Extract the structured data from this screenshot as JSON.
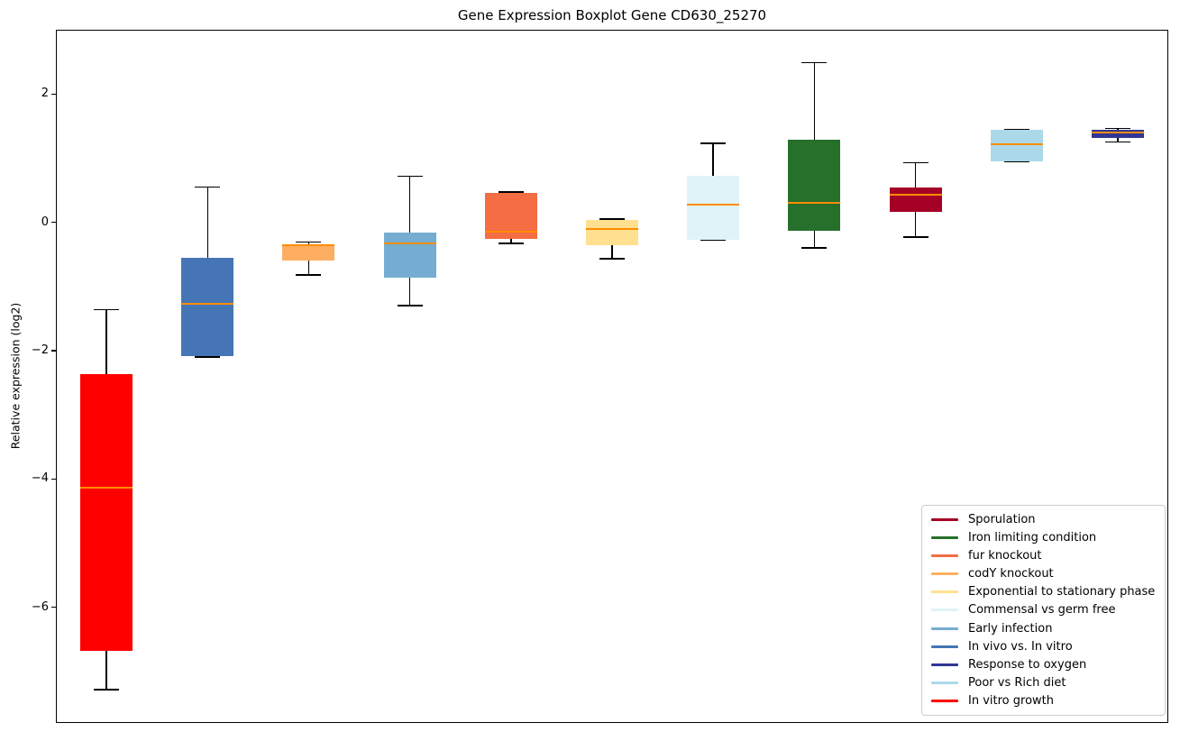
{
  "figure": {
    "title": "Gene Expression Boxplot Gene CD630_25270",
    "y_axis_label": "Relative expression (log2)"
  },
  "chart_data": {
    "type": "boxplot",
    "title": "Gene Expression Boxplot Gene CD630_25270",
    "xlabel": "",
    "ylabel": "Relative expression (log2)",
    "ylim": [
      -7.8,
      3.0
    ],
    "yticks": [
      2,
      0,
      -2,
      -4,
      -6
    ],
    "grid": false,
    "legend_position": "lower right",
    "median_color": "#FF8C00",
    "whisker_color": "#000000",
    "boxes": [
      {
        "label": "In vitro growth",
        "color": "#FF0000",
        "whisker_low": -7.28,
        "q1": -6.68,
        "median": -4.13,
        "q3": -2.37,
        "whisker_high": -1.36
      },
      {
        "label": "In vivo vs. In vitro",
        "color": "#4575B4",
        "whisker_low": -2.1,
        "q1": -2.08,
        "median": -1.27,
        "q3": -0.56,
        "whisker_high": 0.55
      },
      {
        "label": "codY knockout",
        "color": "#FDAE61",
        "whisker_low": -0.82,
        "q1": -0.6,
        "median": -0.36,
        "q3": -0.34,
        "whisker_high": -0.31
      },
      {
        "label": "Early infection",
        "color": "#74ADD1",
        "whisker_low": -1.3,
        "q1": -0.86,
        "median": -0.33,
        "q3": -0.16,
        "whisker_high": 0.72
      },
      {
        "label": "fur knockout",
        "color": "#F46D43",
        "whisker_low": -0.33,
        "q1": -0.26,
        "median": -0.15,
        "q3": 0.46,
        "whisker_high": 0.47
      },
      {
        "label": "Exponential to stationary phase",
        "color": "#FEE090",
        "whisker_low": -0.57,
        "q1": -0.36,
        "median": -0.1,
        "q3": 0.04,
        "whisker_high": 0.05
      },
      {
        "label": "Commensal vs germ free",
        "color": "#E0F3F8",
        "whisker_low": -0.28,
        "q1": -0.27,
        "median": 0.27,
        "q3": 0.72,
        "whisker_high": 1.23
      },
      {
        "label": "Iron limiting condition",
        "color": "#26702C",
        "whisker_low": -0.4,
        "q1": -0.13,
        "median": 0.3,
        "q3": 1.28,
        "whisker_high": 2.49
      },
      {
        "label": "Sporulation",
        "color": "#A50026",
        "whisker_low": -0.23,
        "q1": 0.16,
        "median": 0.43,
        "q3": 0.54,
        "whisker_high": 0.93
      },
      {
        "label": "Poor vs Rich diet",
        "color": "#ABD9E9",
        "whisker_low": 0.94,
        "q1": 0.95,
        "median": 1.22,
        "q3": 1.44,
        "whisker_high": 1.45
      },
      {
        "label": "Response to oxygen",
        "color": "#313695",
        "whisker_low": 1.25,
        "q1": 1.32,
        "median": 1.4,
        "q3": 1.44,
        "whisker_high": 1.46
      }
    ],
    "legend": [
      {
        "label": "Sporulation",
        "color": "#A50026"
      },
      {
        "label": "Iron limiting condition",
        "color": "#26702C"
      },
      {
        "label": "fur knockout",
        "color": "#F46D43"
      },
      {
        "label": "codY knockout",
        "color": "#FDAE61"
      },
      {
        "label": "Exponential to stationary phase",
        "color": "#FEE090"
      },
      {
        "label": "Commensal vs germ free",
        "color": "#E0F3F8"
      },
      {
        "label": "Early infection",
        "color": "#74ADD1"
      },
      {
        "label": "In vivo vs. In vitro",
        "color": "#4575B4"
      },
      {
        "label": "Response to oxygen",
        "color": "#313695"
      },
      {
        "label": "Poor vs Rich diet",
        "color": "#ABD9E9"
      },
      {
        "label": "In vitro growth",
        "color": "#FF0000"
      }
    ]
  }
}
